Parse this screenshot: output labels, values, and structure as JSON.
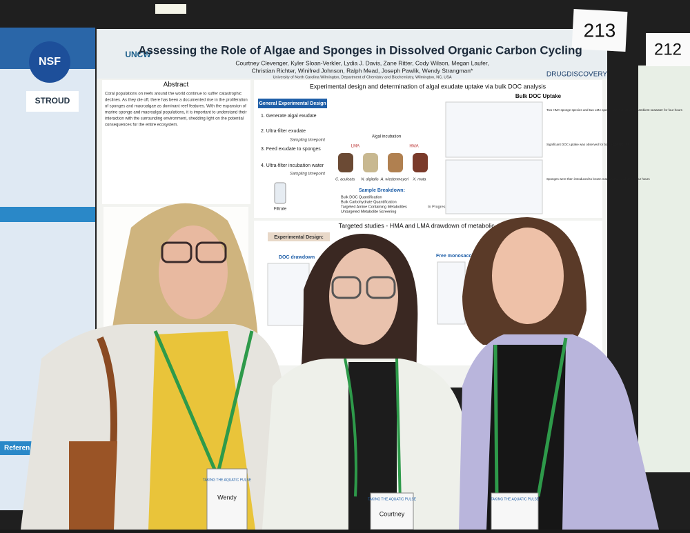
{
  "poster_numbers": [
    "213",
    "212"
  ],
  "poster": {
    "logo_left": "UNCW",
    "logo_right": "DRUGDISCOVERY",
    "title": "Assessing the Role of Algae and Sponges in Dissolved Organic Carbon Cycling",
    "authors": [
      "Courtney Clevenger, Kyler Sloan-Verkler, Lydia J. Davis, Zane Ritter, Cody Wilson, Megan Laufer,",
      "Christian Richter, Winifred Johnson, Ralph Mead, Joseph Pawlik, Wendy Strangman*"
    ],
    "affiliation": "University of North Carolina Wilmington, Department of Chemistry and Biochemistry, Wilmington, NC, USA",
    "abstract_heading": "Abstract",
    "abstract_lines": [
      "Coral populations on reefs around the world continue to suffer catastrophic",
      "declines. As they die off, there has been a documented rise in the proliferation",
      "of sponges and macroalgae as dominant reef features. With the expansion of",
      "marine sponge and macroalgal populations, it is important to understand their",
      "interaction with the surrounding environment, shedding light on the potential",
      "consequences for the entire ecosystem."
    ],
    "section1_heading": "Experimental design and determination of algal exudate uptake via bulk DOC analysis",
    "design_heading": "General Experimental Design",
    "steps": [
      "1. Generate algal exudate",
      "2. Ultra-filter exudate",
      "3. Feed exudate to sponges",
      "4. Ultra-filter incubation water"
    ],
    "sampling": "Sampling timepoint",
    "algae_incubation": "Algal incubation",
    "species": [
      "C. aculeata",
      "N. digitalis",
      "A. wiedenmayeri",
      "X. muta"
    ],
    "groups": [
      "LMA",
      "HMA"
    ],
    "filtrate": "Filtrate",
    "sample_breakdown": {
      "heading": "Sample Breakdown:",
      "items": [
        "Bulk DOC Quantification",
        "Bulk Carbohydrate Quantification",
        "Targeted Amine Containing Metabolites",
        "Untargeted Metabolite Screening"
      ],
      "status": "In Progress"
    },
    "bulk_heading": "Bulk DOC Uptake",
    "notes": [
      "Two HMA sponge species and two LMA species were incubated in ambient seawater for four hours",
      "Significant DOC uptake was observed for both HMA species",
      "Sponges were then introduced to brown macroalgae exudate for four hours"
    ],
    "section2_heading": "Targeted studies - HMA and LMA drawdown of metabolic classes",
    "design2": "Experimental Design:",
    "doc_drawdown": "DOC drawdown",
    "free_mono": "Free monosaccharide"
  },
  "left_poster": {
    "logos": [
      "NSF",
      "STROUD"
    ],
    "heading": "Referen"
  },
  "badges": [
    "Wendy",
    "Courtney"
  ],
  "badge_org": "TAKING THE AQUATIC PULSE"
}
